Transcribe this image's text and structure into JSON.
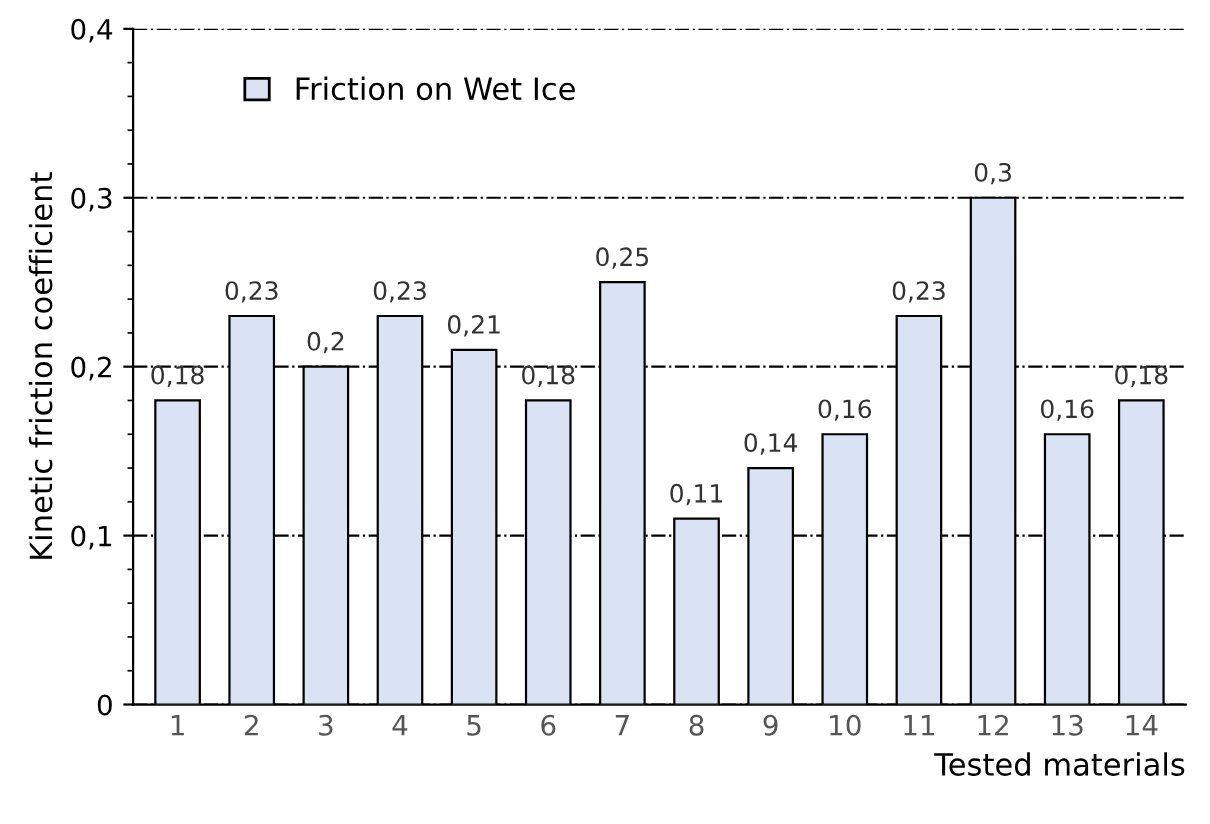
{
  "chart_data": {
    "type": "bar",
    "xlabel": "Tested materials",
    "ylabel": "Kinetic friction coefficient",
    "categories": [
      "1",
      "2",
      "3",
      "4",
      "5",
      "6",
      "7",
      "8",
      "9",
      "10",
      "11",
      "12",
      "13",
      "14"
    ],
    "series": [
      {
        "name": "Friction on Wet Ice",
        "color": "#dae3f3",
        "values": [
          0.18,
          0.23,
          0.2,
          0.23,
          0.21,
          0.18,
          0.25,
          0.11,
          0.14,
          0.16,
          0.23,
          0.3,
          0.16,
          0.18
        ],
        "value_labels": [
          "0,18",
          "0,23",
          "0,2",
          "0,23",
          "0,21",
          "0,18",
          "0,25",
          "0,11",
          "0,14",
          "0,16",
          "0,23",
          "0,3",
          "0,16",
          "0,18"
        ]
      }
    ],
    "ylim": [
      0,
      0.4
    ],
    "yticks": [
      0,
      {
        "value": 0.1,
        "label": "0,1"
      },
      {
        "value": 0.2,
        "label": "0,2"
      },
      {
        "value": 0.3,
        "label": "0,3"
      },
      {
        "value": 0.4,
        "label": "0,4"
      }
    ],
    "grid": "y",
    "legend": "top left"
  }
}
